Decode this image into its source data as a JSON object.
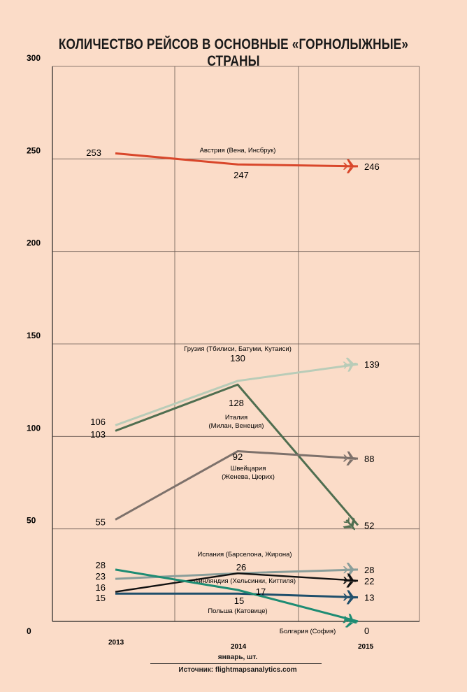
{
  "chart_data": {
    "type": "line",
    "title": "КОЛИЧЕСТВО РЕЙСОВ В ОСНОВНЫЕ «ГОРНОЛЫЖНЫЕ»  СТРАНЫ",
    "xlabel": "январь, шт.",
    "source": "Источник: flightmapsanalytics.com",
    "categories": [
      "2013",
      "2014",
      "2015"
    ],
    "yticks": [
      "0",
      "50",
      "100",
      "150",
      "200",
      "250",
      "300"
    ],
    "ylim": [
      0,
      300
    ],
    "grid": true,
    "series": [
      {
        "name": "Австрия (Вена, Инсбрук)",
        "values": [
          253,
          247,
          246
        ],
        "color": "#d9472b"
      },
      {
        "name": "Грузия (Тбилиси, Батуми, Кутаиси)",
        "values": [
          106,
          130,
          139
        ],
        "color": "#b9ccb8"
      },
      {
        "name": "Италия (Милан, Венеция)",
        "values": [
          103,
          128,
          52
        ],
        "color": "#4f6e50"
      },
      {
        "name": "Швейцария (Женева, Цюрих)",
        "values": [
          55,
          92,
          88
        ],
        "color": "#7d716b"
      },
      {
        "name": "Испания (Барселона, Жирона)",
        "values": [
          23,
          26,
          28
        ],
        "color": "#8a9e9a"
      },
      {
        "name": "Финляндия (Хельсинки, Киттиля)",
        "values": [
          16,
          26,
          22
        ],
        "color": "#111111"
      },
      {
        "name": "Польша (Катовице)",
        "values": [
          15,
          15,
          13
        ],
        "color": "#1f4f6b"
      },
      {
        "name": "Болгария (София)",
        "values": [
          28,
          17,
          0
        ],
        "color": "#1e8c73"
      }
    ]
  }
}
